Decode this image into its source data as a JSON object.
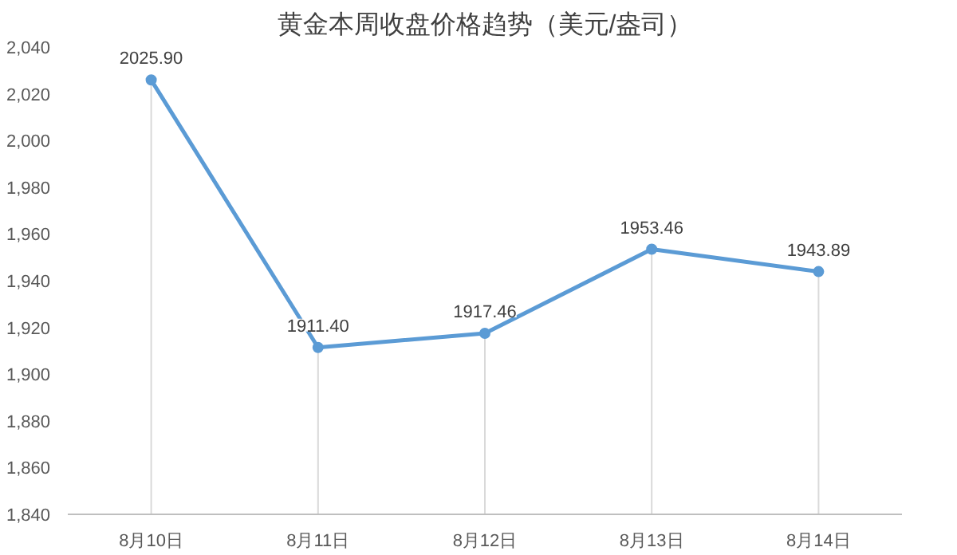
{
  "chart_data": {
    "type": "line",
    "title": "黄金本周收盘价格趋势（美元/盎司）",
    "categories": [
      "8月10日",
      "8月11日",
      "8月12日",
      "8月13日",
      "8月14日"
    ],
    "series": [
      {
        "color": "#5b9bd5",
        "values": [
          2025.9,
          1911.4,
          1917.46,
          1953.46,
          1943.89
        ],
        "value_labels": [
          "2025.90",
          "1911.40",
          "1917.46",
          "1953.46",
          "1943.89"
        ]
      }
    ],
    "ylim": [
      1840,
      2040
    ],
    "yticks": [
      {
        "value": 1840,
        "label": "1,840"
      },
      {
        "value": 1860,
        "label": "1,860"
      },
      {
        "value": 1880,
        "label": "1,880"
      },
      {
        "value": 1900,
        "label": "1,900"
      },
      {
        "value": 1920,
        "label": "1,920"
      },
      {
        "value": 1940,
        "label": "1,940"
      },
      {
        "value": 1960,
        "label": "1,960"
      },
      {
        "value": 1980,
        "label": "1,980"
      },
      {
        "value": 2000,
        "label": "2,000"
      },
      {
        "value": 2020,
        "label": "2,020"
      },
      {
        "value": 2040,
        "label": "2,040"
      }
    ],
    "grid": "x",
    "marker": "circle",
    "line_style": "solid"
  }
}
